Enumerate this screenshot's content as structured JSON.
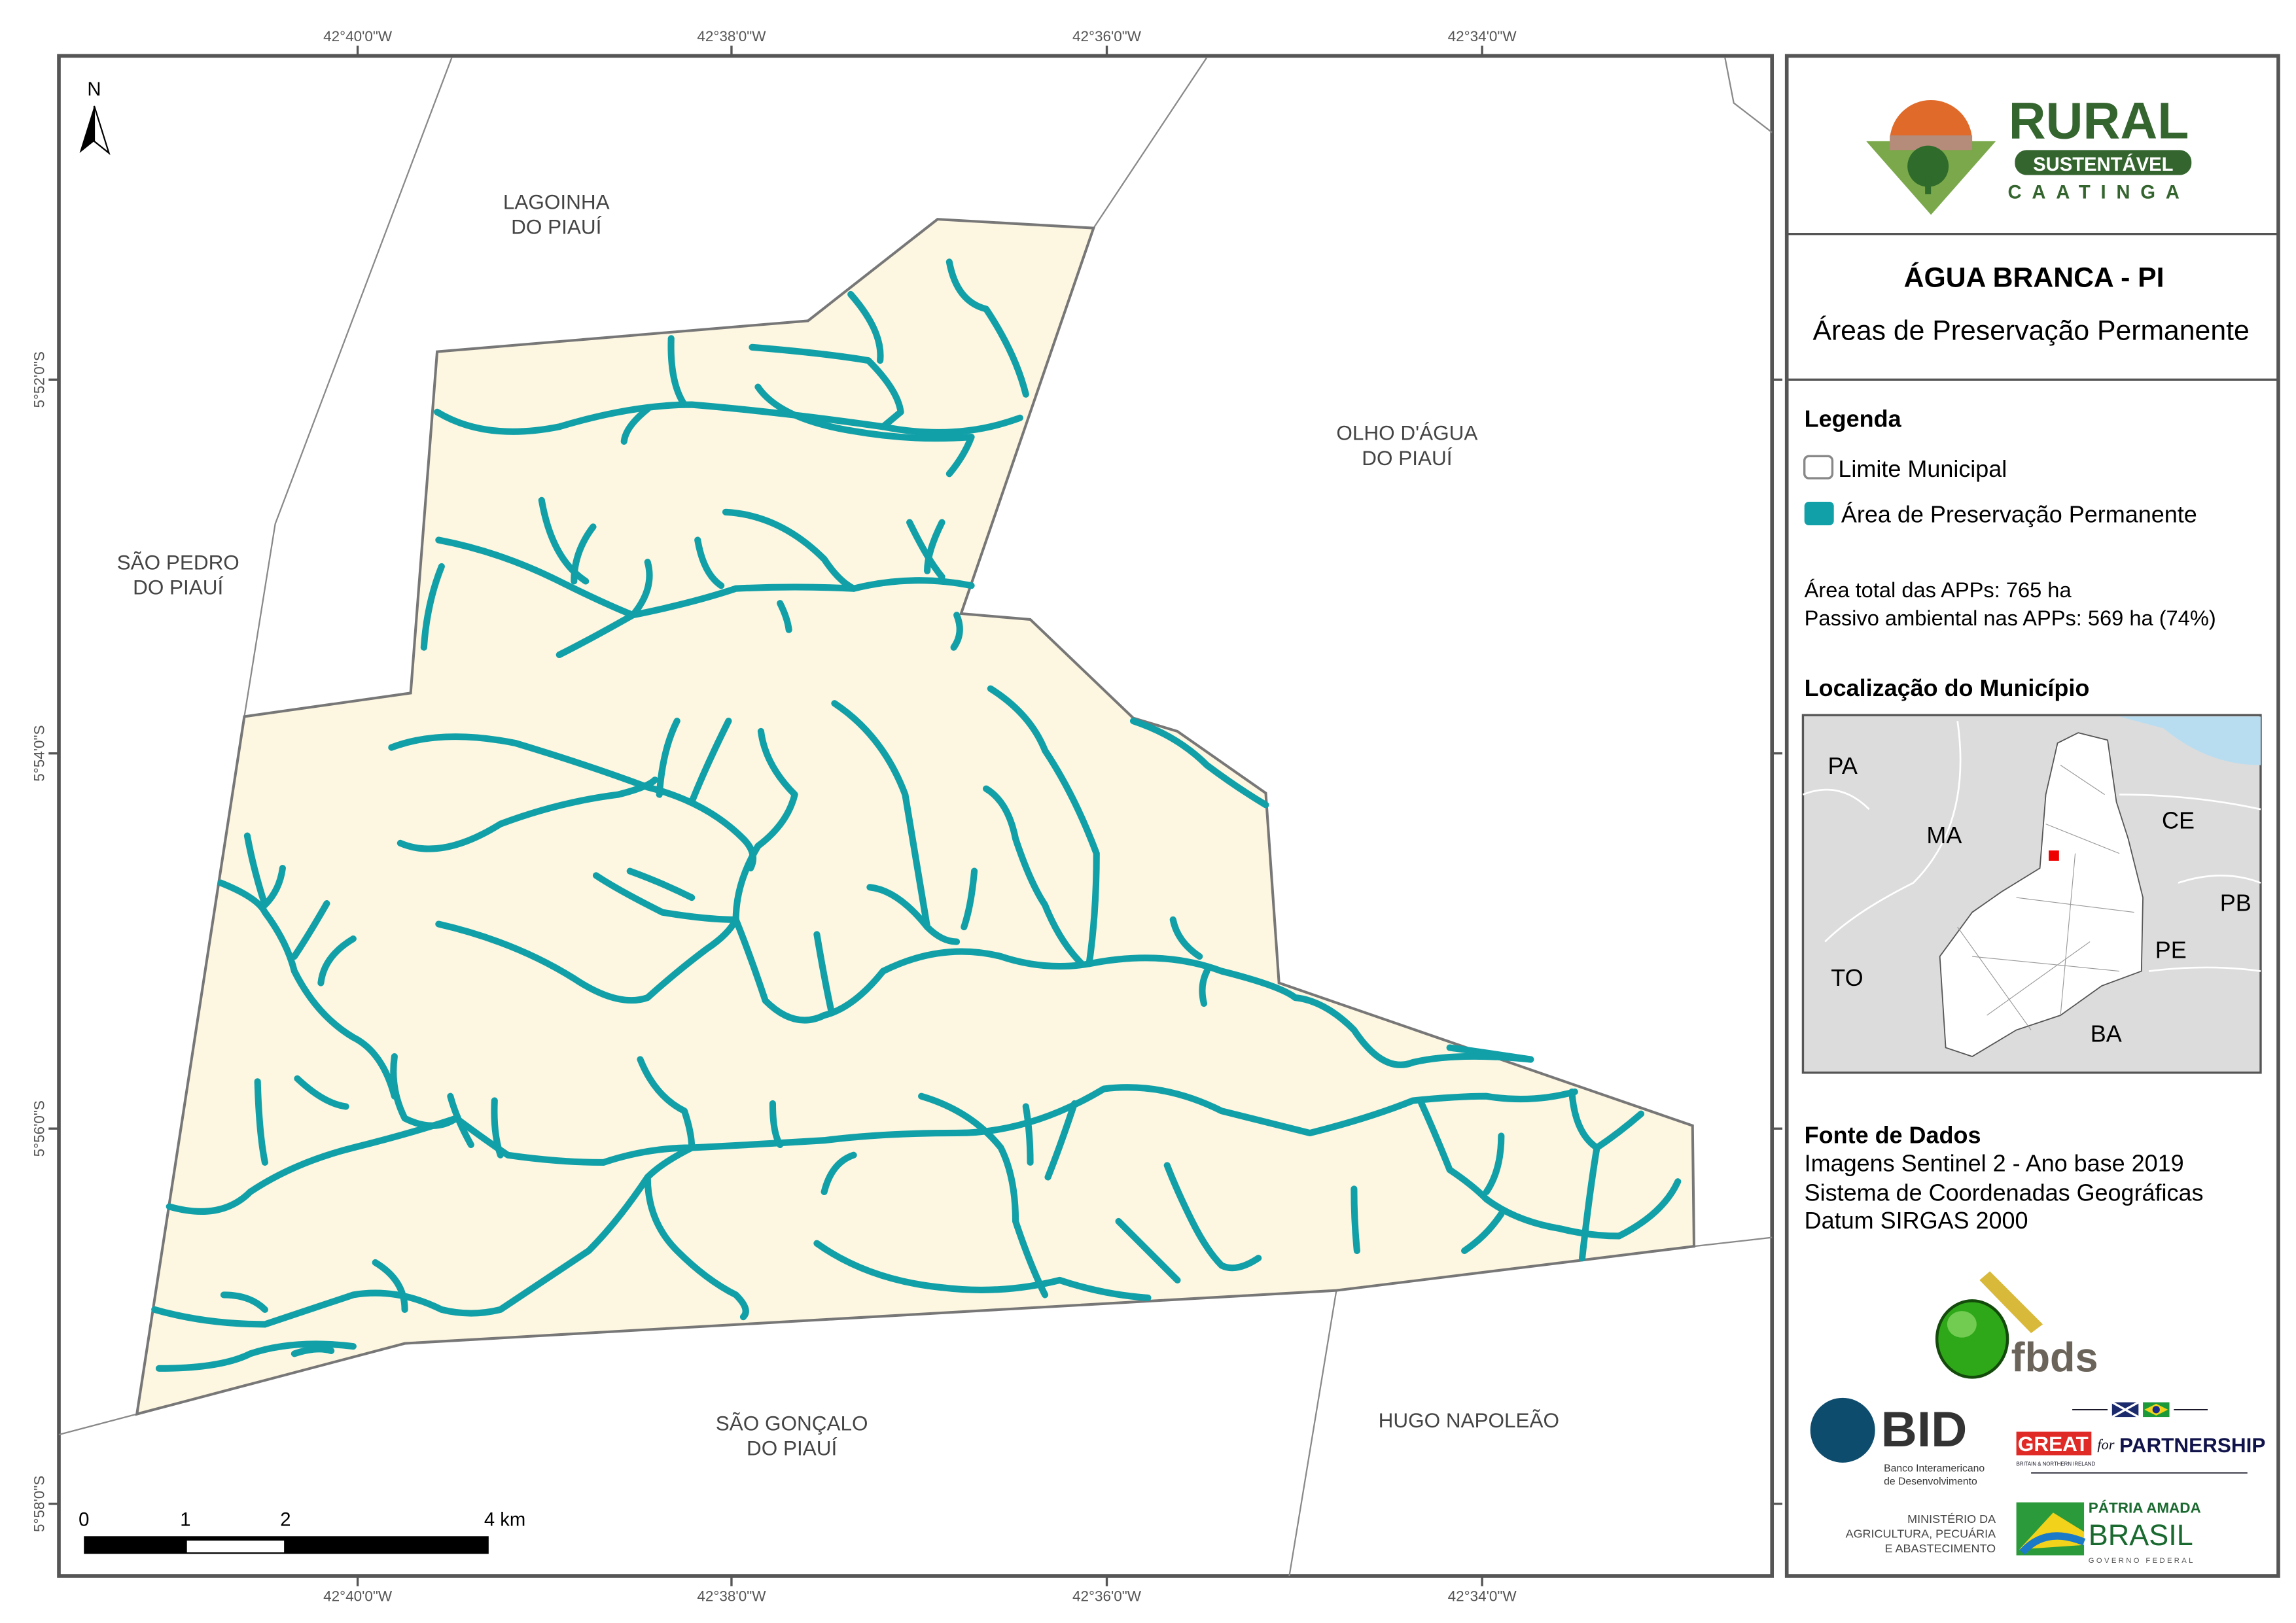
{
  "map": {
    "north_arrow": "N",
    "top_axis": [
      "42°40'0\"W",
      "42°38'0\"W",
      "42°36'0\"W",
      "42°34'0\"W"
    ],
    "bottom_axis": [
      "42°40'0\"W",
      "42°38'0\"W",
      "42°36'0\"W",
      "42°34'0\"W"
    ],
    "left_axis": [
      "5°52'0\"S",
      "5°54'0\"S",
      "5°56'0\"S",
      "5°58'0\"S"
    ],
    "neighbors": [
      [
        "LAGOINHA",
        "DO PIAUÍ"
      ],
      [
        "OLHO D'ÁGUA",
        "DO PIAUÍ"
      ],
      [
        "SÃO PEDRO",
        "DO PIAUÍ"
      ],
      [
        "SÃO GONÇALO",
        "DO PIAUÍ"
      ],
      [
        "HUGO NAPOLEÃO"
      ]
    ],
    "scale_bar": [
      "0",
      "1",
      "2",
      "4 km"
    ],
    "colors": {
      "municipality_fill": "#fdf6e0",
      "app": "#12a0a8",
      "boundary": "#777777"
    }
  },
  "panel": {
    "logo": {
      "line1": "RURAL",
      "line2": "SUSTENTÁVEL",
      "line3": "CAATINGA"
    },
    "title": "ÁGUA BRANCA - PI",
    "subtitle": "Áreas de Preservação Permanente",
    "legend_title": "Legenda",
    "legend_items": [
      "Limite Municipal",
      "Área de Preservação Permanente"
    ],
    "stats": [
      "Área total das APPs: 765 ha",
      "Passivo ambiental nas APPs: 569 ha (74%)"
    ],
    "location_title": "Localização do Município",
    "inset_labels": [
      "PA",
      "MA",
      "CE",
      "PB",
      "PE",
      "TO",
      "BA"
    ],
    "source_title": "Fonte de Dados",
    "source_lines": [
      "Imagens Sentinel 2 - Ano base 2019",
      "Sistema de Coordenadas Geográficas",
      "Datum SIRGAS 2000"
    ],
    "partner_logos": {
      "fbds": "fbds",
      "bid": "BID",
      "bid_sub": [
        "Banco Interamericano",
        "de Desenvolvimento"
      ],
      "great": "GREAT",
      "great_for": "for",
      "partnership": "PARTNERSHIP",
      "great_sub": "BRITAIN & NORTHERN IRELAND",
      "ministry": [
        "MINISTÉRIO DA",
        "AGRICULTURA, PECUÁRIA",
        "E ABASTECIMENTO"
      ],
      "brasil": [
        "PÁTRIA AMADA",
        "BRASIL",
        "GOVERNO FEDERAL"
      ]
    }
  }
}
